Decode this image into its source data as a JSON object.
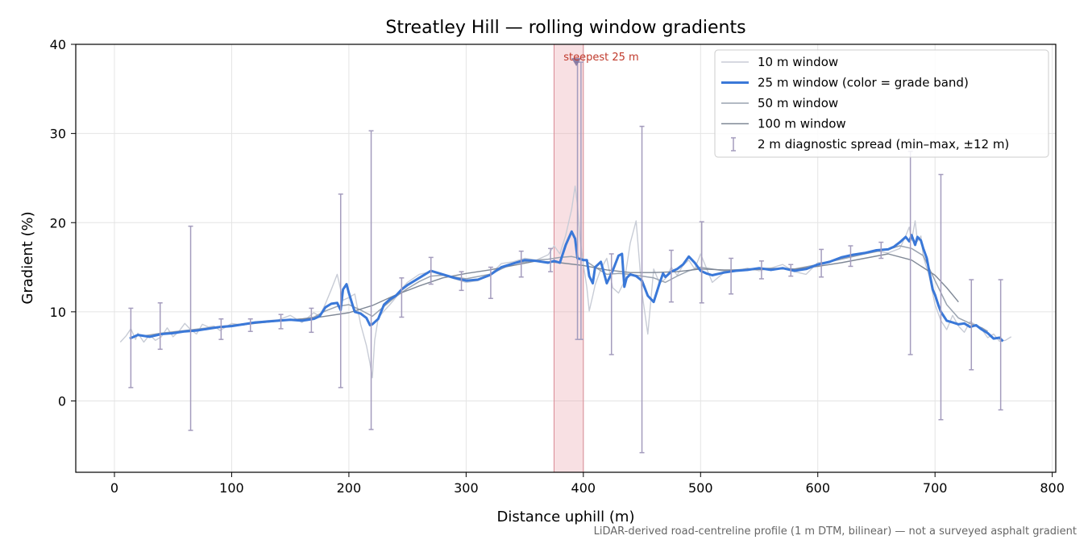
{
  "chart_data": {
    "type": "line",
    "title": "Streatley Hill — rolling window gradients",
    "xlabel": "Distance uphill (m)",
    "ylabel": "Gradient (%)",
    "xlim": [
      -33,
      803
    ],
    "ylim": [
      -8,
      40
    ],
    "xticks": [
      0,
      100,
      200,
      300,
      400,
      500,
      600,
      700,
      800
    ],
    "yticks": [
      0,
      10,
      20,
      30,
      40
    ],
    "grid": true,
    "legend_position": "top-right",
    "highlight": {
      "x0": 375,
      "x1": 400,
      "label": "steepest 25 m",
      "marker_x": 394,
      "marker_y": 38
    },
    "series": [
      {
        "name": "10 m window",
        "color": "#c8ccd6",
        "x": [
          5,
          10,
          14,
          16,
          18,
          20,
          25,
          30,
          35,
          40,
          45,
          50,
          55,
          60,
          65,
          70,
          75,
          80,
          85,
          90,
          100,
          110,
          120,
          130,
          140,
          150,
          160,
          170,
          175,
          180,
          185,
          190,
          195,
          200,
          205,
          210,
          215,
          218,
          220,
          222,
          225,
          230,
          235,
          240,
          245,
          250,
          260,
          270,
          280,
          290,
          300,
          310,
          320,
          330,
          340,
          350,
          360,
          370,
          375,
          380,
          385,
          390,
          393,
          395,
          397,
          400,
          403,
          405,
          408,
          410,
          415,
          420,
          425,
          430,
          435,
          440,
          445,
          450,
          455,
          460,
          465,
          470,
          475,
          480,
          485,
          490,
          495,
          500,
          510,
          520,
          530,
          540,
          550,
          560,
          570,
          580,
          590,
          600,
          610,
          620,
          630,
          640,
          650,
          660,
          670,
          675,
          678,
          680,
          683,
          685,
          688,
          690,
          695,
          700,
          705,
          710,
          715,
          720,
          725,
          730,
          735,
          740,
          745,
          750,
          755,
          760,
          765
        ],
        "y": [
          6.6,
          7.3,
          8.1,
          7.5,
          6.9,
          7.6,
          6.6,
          7.4,
          6.8,
          7.2,
          8.2,
          7.2,
          7.8,
          8.7,
          8.0,
          7.5,
          8.6,
          8.3,
          8.4,
          7.9,
          8.7,
          8.5,
          8.8,
          9.0,
          9.1,
          9.6,
          8.8,
          9.9,
          9.5,
          10.9,
          12.5,
          14.2,
          11.3,
          11.6,
          12.0,
          8.6,
          6.2,
          4.2,
          2.6,
          6.8,
          9.3,
          10.1,
          10.8,
          11.6,
          12.6,
          13.3,
          14.2,
          14.5,
          14.1,
          13.7,
          13.3,
          13.5,
          14.1,
          15.4,
          15.6,
          16.0,
          15.8,
          16.4,
          17.4,
          16.5,
          18.6,
          21.5,
          24.1,
          22.0,
          18.4,
          15.4,
          12.7,
          10.1,
          11.8,
          13.0,
          14.8,
          16.0,
          12.7,
          12.1,
          13.4,
          17.7,
          20.2,
          12.2,
          7.5,
          14.8,
          13.2,
          13.7,
          15.0,
          14.1,
          15.2,
          15.8,
          14.8,
          16.5,
          13.3,
          14.4,
          14.6,
          14.9,
          14.6,
          14.9,
          15.3,
          14.5,
          14.2,
          15.5,
          15.6,
          16.0,
          16.2,
          16.5,
          16.8,
          16.6,
          17.1,
          18.5,
          19.5,
          18.0,
          20.2,
          17.9,
          18.5,
          16.2,
          14.0,
          10.8,
          9.0,
          8.0,
          9.6,
          8.4,
          7.7,
          8.9,
          8.5,
          8.0,
          7.1,
          7.5,
          6.7,
          6.8,
          7.2
        ]
      },
      {
        "name": "25 m window (color = grade band)",
        "color": "#3a78d8",
        "x": [
          13,
          20,
          30,
          40,
          50,
          60,
          70,
          80,
          90,
          100,
          110,
          120,
          130,
          140,
          150,
          160,
          170,
          175,
          180,
          185,
          190,
          193,
          195,
          198,
          200,
          203,
          205,
          210,
          215,
          218,
          220,
          225,
          230,
          235,
          240,
          245,
          250,
          260,
          270,
          280,
          290,
          300,
          310,
          320,
          330,
          340,
          350,
          360,
          370,
          375,
          380,
          385,
          390,
          393,
          395,
          398,
          400,
          403,
          405,
          408,
          410,
          415,
          420,
          425,
          430,
          433,
          435,
          437,
          440,
          445,
          450,
          455,
          460,
          465,
          468,
          470,
          475,
          480,
          485,
          490,
          495,
          500,
          505,
          510,
          520,
          530,
          540,
          550,
          560,
          570,
          580,
          590,
          600,
          610,
          620,
          630,
          640,
          650,
          660,
          665,
          670,
          675,
          678,
          680,
          683,
          685,
          688,
          690,
          693,
          695,
          698,
          700,
          703,
          705,
          708,
          710,
          715,
          720,
          725,
          730,
          735,
          740,
          745,
          750,
          755,
          758
        ],
        "y": [
          7.0,
          7.4,
          7.2,
          7.5,
          7.6,
          7.8,
          7.9,
          8.1,
          8.3,
          8.4,
          8.6,
          8.8,
          8.9,
          9.0,
          9.1,
          9.0,
          9.2,
          9.5,
          10.5,
          10.9,
          11.0,
          10.2,
          12.5,
          13.1,
          12.1,
          10.8,
          10.0,
          9.8,
          9.3,
          8.5,
          8.6,
          9.2,
          10.8,
          11.4,
          11.8,
          12.5,
          13.0,
          13.8,
          14.6,
          14.2,
          13.8,
          13.5,
          13.6,
          14.1,
          15.0,
          15.4,
          15.8,
          15.7,
          15.5,
          15.7,
          15.5,
          17.5,
          19.0,
          18.2,
          16.0,
          15.9,
          15.8,
          15.8,
          14.0,
          13.2,
          15.0,
          15.6,
          13.2,
          14.6,
          16.3,
          16.5,
          12.8,
          13.8,
          14.2,
          14.0,
          13.5,
          11.8,
          11.1,
          13.2,
          14.3,
          13.9,
          14.5,
          14.8,
          15.3,
          16.2,
          15.5,
          14.6,
          14.3,
          14.1,
          14.4,
          14.6,
          14.7,
          14.9,
          14.7,
          14.9,
          14.6,
          14.8,
          15.3,
          15.6,
          16.1,
          16.4,
          16.6,
          16.9,
          17.0,
          17.3,
          17.8,
          18.4,
          17.9,
          18.6,
          17.5,
          18.4,
          18.0,
          17.1,
          16.0,
          14.6,
          12.5,
          11.9,
          10.7,
          10.0,
          9.4,
          9.0,
          8.8,
          8.6,
          8.7,
          8.3,
          8.5,
          8.0,
          7.6,
          7.0,
          7.1,
          6.7
        ]
      },
      {
        "name": "50 m window",
        "color": "#9aa3b0",
        "x": [
          25,
          40,
          60,
          80,
          100,
          120,
          140,
          160,
          170,
          180,
          190,
          200,
          210,
          220,
          230,
          240,
          250,
          260,
          270,
          280,
          290,
          300,
          320,
          340,
          360,
          370,
          380,
          390,
          400,
          410,
          420,
          430,
          440,
          450,
          460,
          470,
          480,
          490,
          500,
          520,
          540,
          560,
          580,
          600,
          620,
          640,
          660,
          670,
          680,
          690,
          700,
          710,
          720,
          730,
          740,
          745
        ],
        "y": [
          7.3,
          7.6,
          7.9,
          8.2,
          8.5,
          8.8,
          9.0,
          9.2,
          9.4,
          10.1,
          10.6,
          10.8,
          10.2,
          9.5,
          10.6,
          11.7,
          12.6,
          13.4,
          14.0,
          14.1,
          13.9,
          13.7,
          14.2,
          15.4,
          15.8,
          15.9,
          16.1,
          16.2,
          15.9,
          15.0,
          14.2,
          14.3,
          14.2,
          14.0,
          13.8,
          13.3,
          14.0,
          14.6,
          15.0,
          14.6,
          14.8,
          14.9,
          14.8,
          15.3,
          15.9,
          16.5,
          17.0,
          17.4,
          17.1,
          16.3,
          13.5,
          10.8,
          9.3,
          8.7,
          8.2,
          7.8
        ]
      },
      {
        "name": "100 m window",
        "color": "#7f8896",
        "x": [
          50,
          80,
          100,
          120,
          150,
          170,
          200,
          220,
          240,
          260,
          280,
          300,
          320,
          340,
          360,
          380,
          400,
          420,
          440,
          460,
          480,
          500,
          520,
          540,
          560,
          580,
          600,
          620,
          640,
          660,
          680,
          700,
          710,
          720
        ],
        "y": [
          7.7,
          8.1,
          8.4,
          8.7,
          9.1,
          9.3,
          9.9,
          10.7,
          11.9,
          12.9,
          13.8,
          14.3,
          14.7,
          15.2,
          15.7,
          15.5,
          15.2,
          14.7,
          14.4,
          14.4,
          14.5,
          14.8,
          14.7,
          14.7,
          14.8,
          14.8,
          15.1,
          15.5,
          16.0,
          16.5,
          15.8,
          14.1,
          12.7,
          11.1
        ]
      },
      {
        "name": "2 m diagnostic spread (min–max, ±12 m)",
        "color": "#a49cbd",
        "type": "errorbar",
        "points": [
          {
            "x": 14,
            "y": 7.0,
            "min": 1.5,
            "max": 10.4
          },
          {
            "x": 39,
            "y": 7.5,
            "min": 5.8,
            "max": 11.0
          },
          {
            "x": 65,
            "y": 7.8,
            "min": -3.3,
            "max": 19.6
          },
          {
            "x": 91,
            "y": 8.2,
            "min": 6.9,
            "max": 9.2
          },
          {
            "x": 116,
            "y": 8.6,
            "min": 7.8,
            "max": 9.2
          },
          {
            "x": 142,
            "y": 9.0,
            "min": 8.1,
            "max": 9.7
          },
          {
            "x": 168,
            "y": 9.2,
            "min": 7.7,
            "max": 10.4
          },
          {
            "x": 193,
            "y": 11.0,
            "min": 1.5,
            "max": 23.2
          },
          {
            "x": 219,
            "y": 8.6,
            "min": -3.2,
            "max": 30.3
          },
          {
            "x": 245,
            "y": 12.5,
            "min": 9.4,
            "max": 13.8
          },
          {
            "x": 270,
            "y": 14.6,
            "min": 13.1,
            "max": 16.1
          },
          {
            "x": 296,
            "y": 13.6,
            "min": 12.4,
            "max": 14.5
          },
          {
            "x": 321,
            "y": 14.1,
            "min": 11.5,
            "max": 15.0
          },
          {
            "x": 347,
            "y": 15.5,
            "min": 13.9,
            "max": 16.8
          },
          {
            "x": 372,
            "y": 15.6,
            "min": 14.5,
            "max": 17.1
          },
          {
            "x": 395,
            "y": 16.0,
            "min": 6.9,
            "max": 38.0
          },
          {
            "x": 398,
            "y": 16.0,
            "min": 6.9,
            "max": 38.0
          },
          {
            "x": 424,
            "y": 14.0,
            "min": 5.2,
            "max": 16.5
          },
          {
            "x": 450,
            "y": 13.8,
            "min": -5.8,
            "max": 30.8
          },
          {
            "x": 475,
            "y": 14.0,
            "min": 11.1,
            "max": 16.9
          },
          {
            "x": 501,
            "y": 14.6,
            "min": 11.0,
            "max": 20.1
          },
          {
            "x": 526,
            "y": 14.4,
            "min": 12.0,
            "max": 16.0
          },
          {
            "x": 552,
            "y": 14.8,
            "min": 13.7,
            "max": 15.7
          },
          {
            "x": 577,
            "y": 14.8,
            "min": 14.0,
            "max": 15.3
          },
          {
            "x": 603,
            "y": 15.4,
            "min": 13.9,
            "max": 17.0
          },
          {
            "x": 628,
            "y": 15.9,
            "min": 15.1,
            "max": 17.4
          },
          {
            "x": 654,
            "y": 16.8,
            "min": 16.0,
            "max": 17.8
          },
          {
            "x": 679,
            "y": 18.2,
            "min": 5.2,
            "max": 28.0
          },
          {
            "x": 705,
            "y": 9.5,
            "min": -2.1,
            "max": 25.4
          },
          {
            "x": 731,
            "y": 8.6,
            "min": 3.5,
            "max": 13.6
          },
          {
            "x": 756,
            "y": 6.8,
            "min": -1.0,
            "max": 13.6
          }
        ]
      }
    ],
    "footnote": "LiDAR-derived road-centreline profile (1 m DTM, bilinear) — not a surveyed asphalt gradient"
  }
}
